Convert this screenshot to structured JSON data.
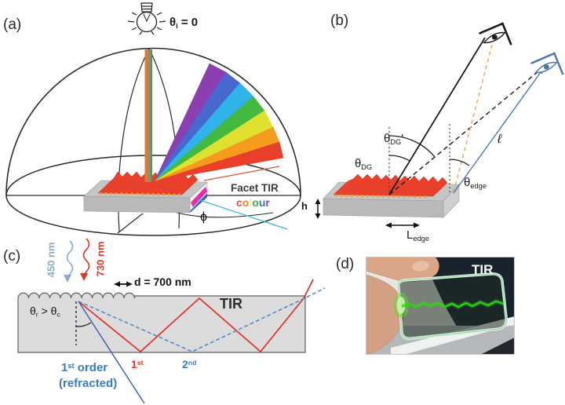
{
  "figure": {
    "description": "Four-panel optics figure: diffraction dome, viewing geometry, TIR ray trace, photo"
  },
  "colors": {
    "grating_red": "#e8402a",
    "slab_gray": "#c6c6c6",
    "ray_red": "#e03028",
    "ray_blue_dashed": "#4a86c8",
    "refracted_blue": "#4065b5",
    "dashed_orange": "#e8a96a",
    "eye_black": "#1a1a1a",
    "eye_blue": "#4a74aa",
    "laser_green": "#2fd414",
    "facet_magenta": "#e82ea0",
    "facet_blue": "#2a5ae0",
    "wavelength_blue_text": "#8fa9cc",
    "wavelength_red_text": "#d63a2a",
    "rainbow": [
      "#8b3fb0",
      "#4668cf",
      "#2fb3e8",
      "#43b93f",
      "#e0e02e",
      "#f59b1e",
      "#e8402a"
    ]
  },
  "panel_a": {
    "label": "(a)",
    "theta_i": {
      "sym": "θ",
      "sub": "i",
      "rest": " = 0"
    },
    "facet_tir": "Facet TIR",
    "colour": [
      {
        "ch": "c",
        "c": "#e0524a"
      },
      {
        "ch": "o",
        "c": "#f0861c"
      },
      {
        "ch": "l",
        "c": "#f3ee9a"
      },
      {
        "ch": "o",
        "c": "#3fae49"
      },
      {
        "ch": "u",
        "c": "#3f6fd0"
      },
      {
        "ch": "r",
        "c": "#8b3fb0"
      }
    ],
    "phi": "ϕ"
  },
  "panel_b": {
    "label": "(b)",
    "theta_dg_prime": {
      "sym": "θ",
      "sub": "DG",
      "prime": "'"
    },
    "theta_dg": {
      "sym": "θ",
      "sub": "DG"
    },
    "theta_edge": {
      "sym": "θ",
      "sub": "edge"
    },
    "ell": "ℓ",
    "h": "h",
    "l_edge": {
      "sym": "L",
      "sub": "edge"
    }
  },
  "panel_c": {
    "label": "(c)",
    "wavelength_blue": "450 nm",
    "wavelength_red": "730 nm",
    "period": "d = 700 nm",
    "tir": "TIR",
    "theta_cond": {
      "t1": "θ",
      "s1": "r",
      "op": " > ",
      "t2": "θ",
      "s2": "c"
    },
    "first_order": {
      "n": "1",
      "sup": "st",
      "rest": " order"
    },
    "refracted": "(refracted)",
    "first": {
      "n": "1",
      "sup": "st"
    },
    "second": {
      "n": "2",
      "sup": "nd"
    }
  },
  "panel_d": {
    "label": "(d)",
    "tir": "TIR"
  }
}
